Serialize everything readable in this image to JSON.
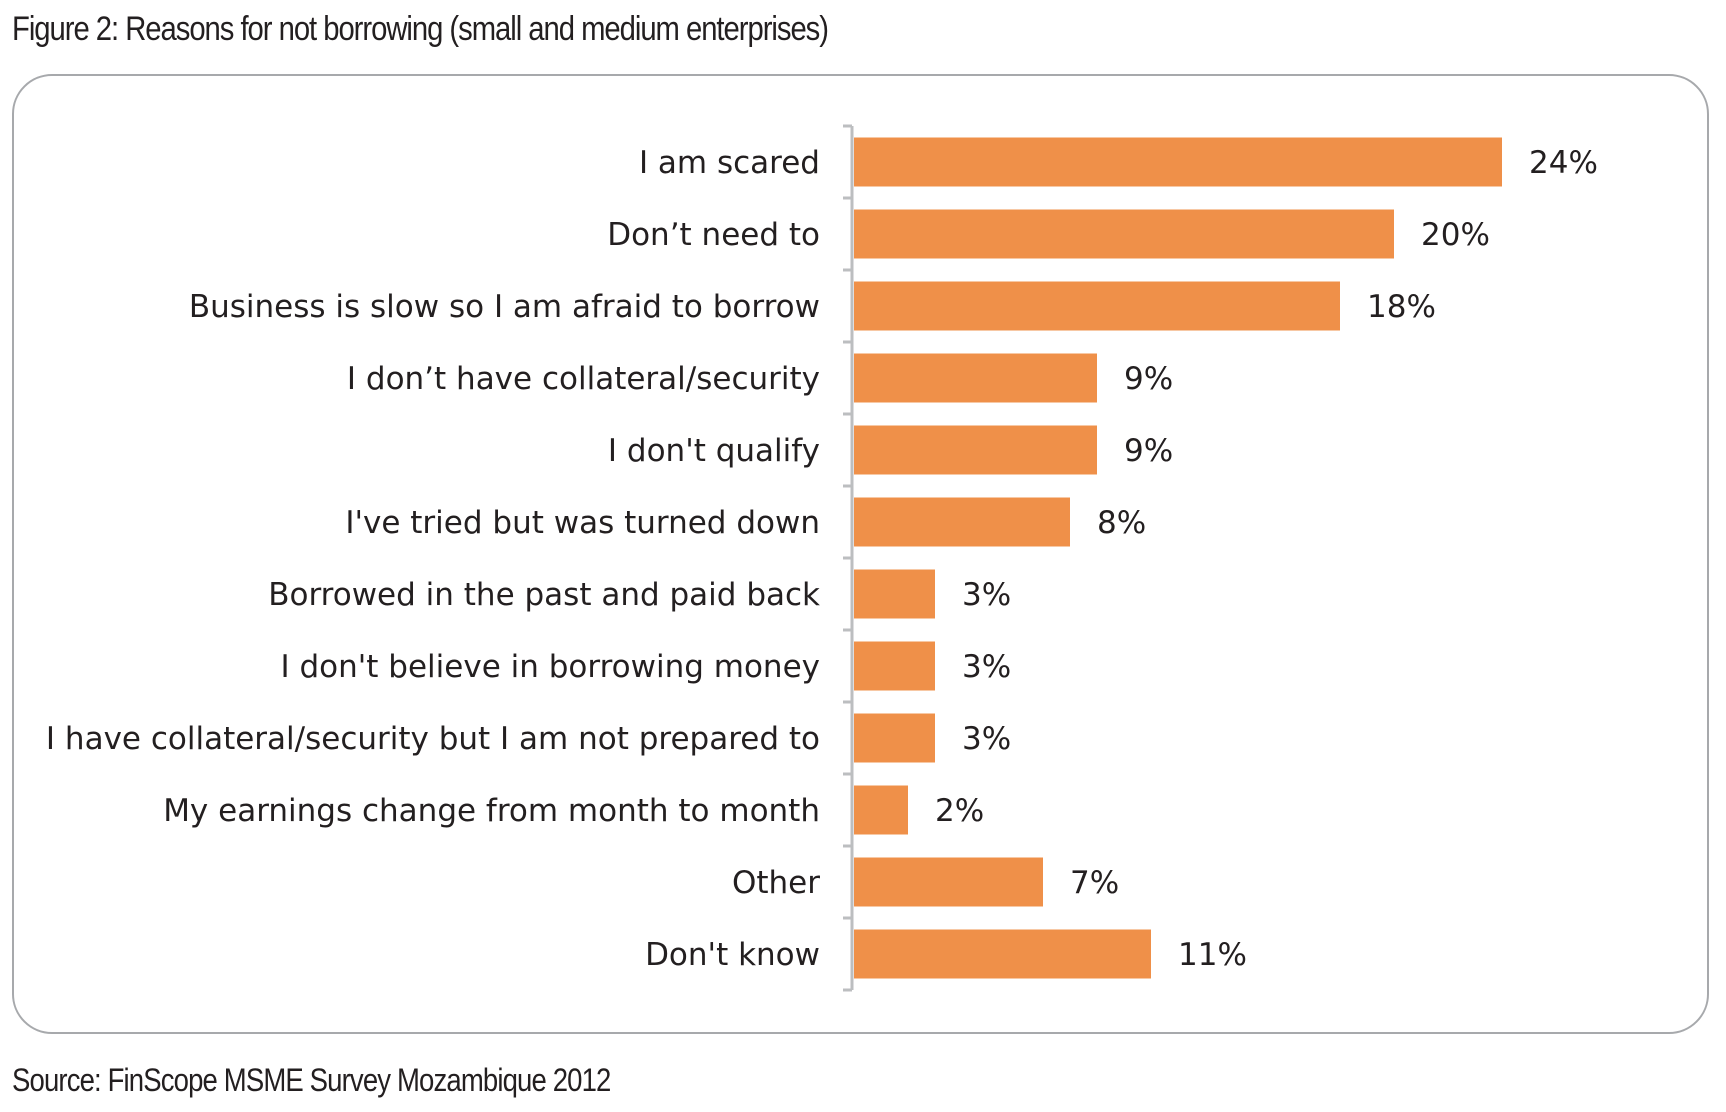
{
  "figure": {
    "title": "Figure 2: Reasons for not borrowing (small and medium enterprises)",
    "source": "Source: FinScope MSME Survey Mozambique 2012"
  },
  "colors": {
    "bar": "#ef9049",
    "frame": "#a7a9ac",
    "axis": "#bcbec0",
    "text": "#231f20"
  },
  "chart_data": {
    "type": "bar",
    "orientation": "horizontal",
    "title": "Figure 2: Reasons for not borrowing (small and medium enterprises)",
    "xlabel": "",
    "ylabel": "",
    "xlim": [
      0,
      24
    ],
    "grid": false,
    "legend": "none",
    "categories": [
      "I am scared",
      "Don’t need to",
      "Business is slow so I am afraid to borrow",
      "I don’t have collateral/security",
      "I don't qualify",
      "I've tried but was turned down",
      "Borrowed in the past and paid back",
      "I don't believe in borrowing money",
      "I have collateral/security but I am not prepared to",
      "My earnings change from month to month",
      "Other",
      "Don't know"
    ],
    "values": [
      24,
      20,
      18,
      9,
      9,
      8,
      3,
      3,
      3,
      2,
      7,
      11
    ],
    "value_labels": [
      "24%",
      "20%",
      "18%",
      "9%",
      "9%",
      "8%",
      "3%",
      "3%",
      "3%",
      "2%",
      "7%",
      "11%"
    ]
  }
}
